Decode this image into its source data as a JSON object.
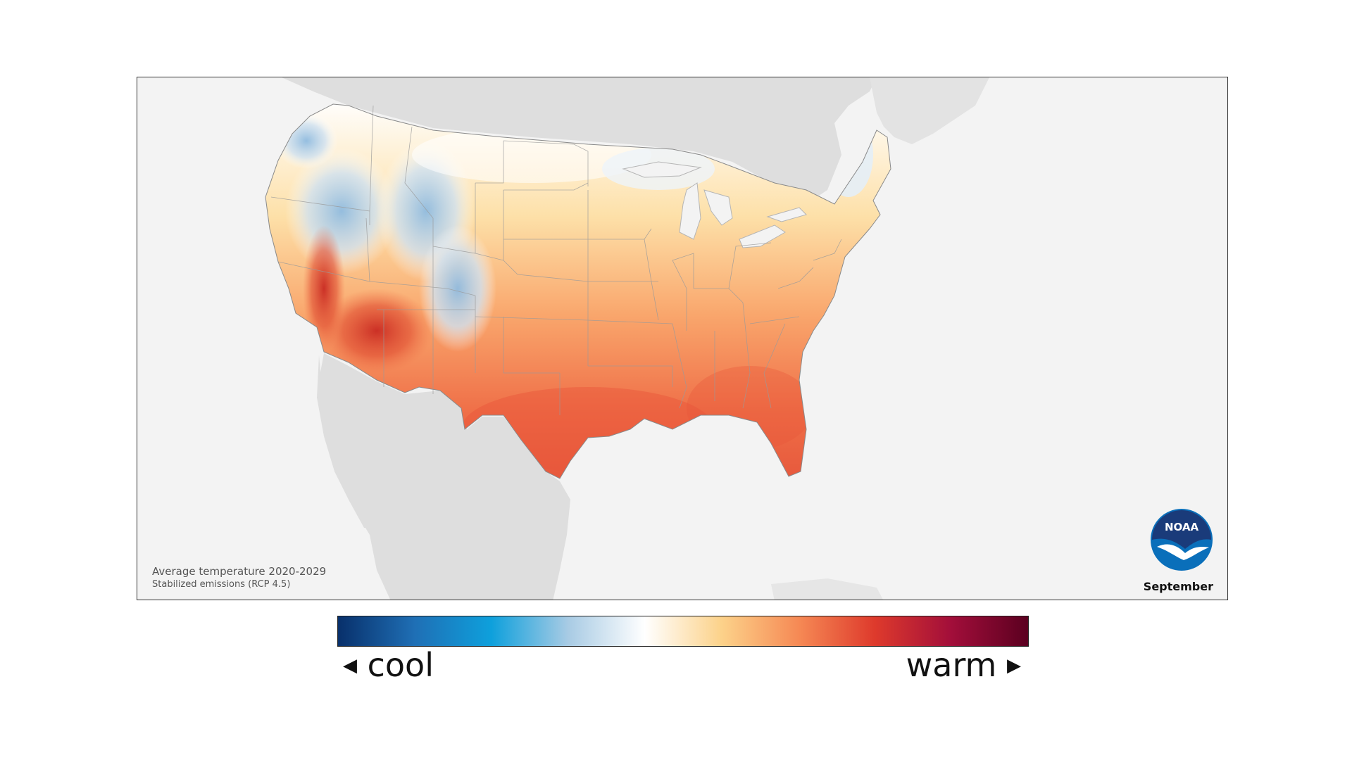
{
  "map": {
    "caption_line1": "Average temperature 2020-2029",
    "caption_line2": "Stabilized emissions (RCP 4.5)",
    "month": "September",
    "logo_text": "NOAA"
  },
  "legend": {
    "low_label": "cool",
    "high_label": "warm",
    "colors": [
      "#08306b",
      "#1f6fb5",
      "#0ea0dc",
      "#a8cbe4",
      "#ffffff",
      "#fcd28a",
      "#f68a55",
      "#de3a2c",
      "#a20e3a",
      "#5b0020"
    ]
  },
  "colors": {
    "land_background": "#dedede",
    "ocean_background": "#f3f3f3",
    "border": "#333333"
  }
}
